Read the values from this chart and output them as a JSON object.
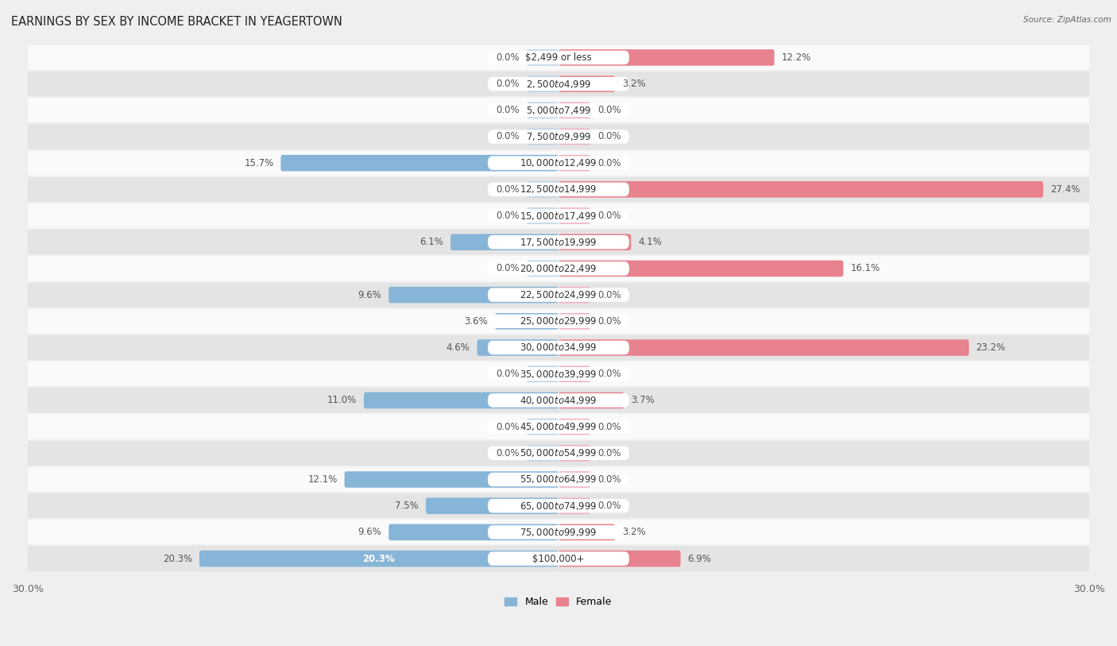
{
  "title": "EARNINGS BY SEX BY INCOME BRACKET IN YEAGERTOWN",
  "source": "Source: ZipAtlas.com",
  "categories": [
    "$2,499 or less",
    "$2,500 to $4,999",
    "$5,000 to $7,499",
    "$7,500 to $9,999",
    "$10,000 to $12,499",
    "$12,500 to $14,999",
    "$15,000 to $17,499",
    "$17,500 to $19,999",
    "$20,000 to $22,499",
    "$22,500 to $24,999",
    "$25,000 to $29,999",
    "$30,000 to $34,999",
    "$35,000 to $39,999",
    "$40,000 to $44,999",
    "$45,000 to $49,999",
    "$50,000 to $54,999",
    "$55,000 to $64,999",
    "$65,000 to $74,999",
    "$75,000 to $99,999",
    "$100,000+"
  ],
  "male_values": [
    0.0,
    0.0,
    0.0,
    0.0,
    15.7,
    0.0,
    0.0,
    6.1,
    0.0,
    9.6,
    3.6,
    4.6,
    0.0,
    11.0,
    0.0,
    0.0,
    12.1,
    7.5,
    9.6,
    20.3
  ],
  "female_values": [
    12.2,
    3.2,
    0.0,
    0.0,
    0.0,
    27.4,
    0.0,
    4.1,
    16.1,
    0.0,
    0.0,
    23.2,
    0.0,
    3.7,
    0.0,
    0.0,
    0.0,
    0.0,
    3.2,
    6.9
  ],
  "male_color": "#87b5d8",
  "female_color": "#e8828e",
  "male_color_light": "#b8d4e8",
  "female_color_light": "#f0b0ba",
  "male_label": "Male",
  "female_label": "Female",
  "axis_max": 30.0,
  "bg_color": "#efefef",
  "bar_bg_color": "#fafafa",
  "row_alt_color": "#e4e4e4",
  "title_fontsize": 10.5,
  "label_fontsize": 8.5,
  "tick_fontsize": 9,
  "cat_label_fontsize": 8.5,
  "value_label_fontsize": 8.5
}
